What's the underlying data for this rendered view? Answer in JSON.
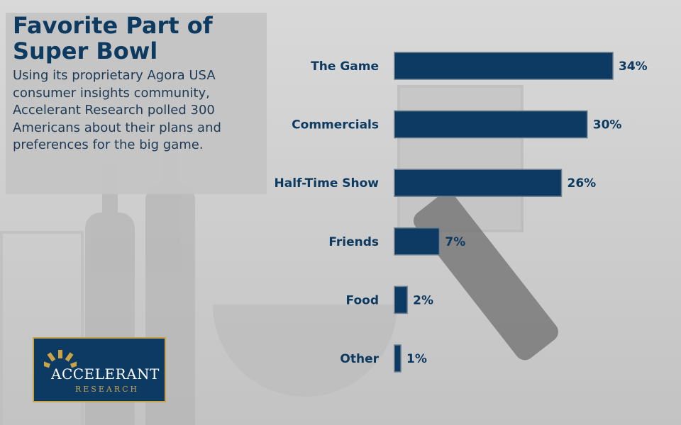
{
  "header": {
    "title": "Favorite Part of Super Bowl",
    "description": "Using its proprietary Agora USA consumer insights community, Accelerant Research polled 300 Americans about their plans and preferences for the big game."
  },
  "logo": {
    "name": "ACCELERANT",
    "subtitle": "RESEARCH"
  },
  "colors": {
    "bar": "#0d3a63",
    "text": "#0c3a60",
    "accent": "#c9a447"
  },
  "chart_data": {
    "type": "bar",
    "orientation": "horizontal",
    "title": "Favorite Part of Super Bowl",
    "categories": [
      "The Game",
      "Commercials",
      "Half-Time Show",
      "Friends",
      "Food",
      "Other"
    ],
    "values": [
      34,
      30,
      26,
      7,
      2,
      1
    ],
    "value_labels": [
      "34%",
      "30%",
      "26%",
      "7%",
      "2%",
      "1%"
    ],
    "unit": "%",
    "xlabel": "",
    "ylabel": "",
    "xlim": [
      0,
      34
    ],
    "grid": false,
    "legend": "none"
  }
}
